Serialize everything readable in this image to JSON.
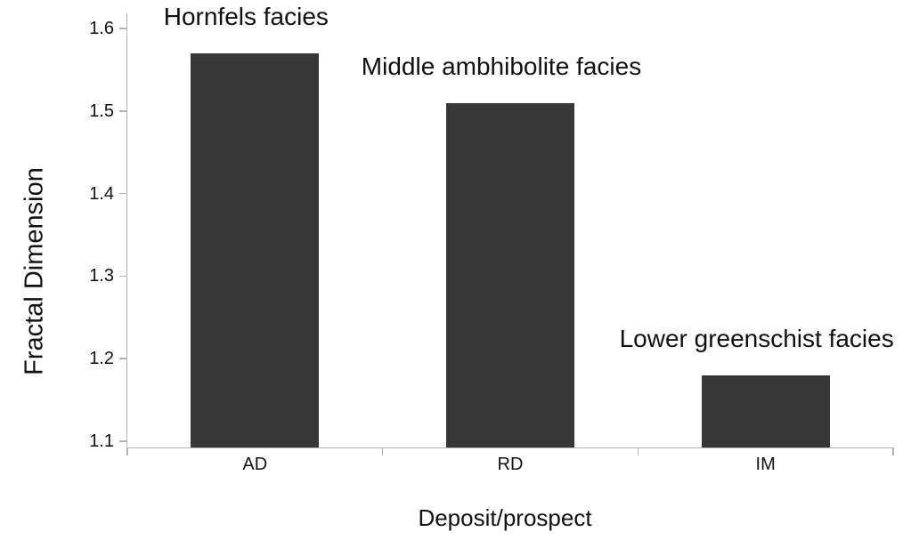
{
  "chart_data": {
    "type": "bar",
    "title": "",
    "xlabel": "Deposit/prospect",
    "ylabel": "Fractal Dimension",
    "categories": [
      "AD",
      "RD",
      "IM"
    ],
    "values": [
      1.57,
      1.51,
      1.18
    ],
    "bar_annotations": [
      "Hornfels facies",
      "Middle ambhibolite facies",
      "Lower greenschist facies"
    ],
    "y_ticks": [
      1.1,
      1.2,
      1.3,
      1.4,
      1.5,
      1.6
    ],
    "ylim": [
      1.1,
      1.6
    ],
    "grid": false,
    "legend": false,
    "layout_hint": "single series vertical bars, annotations above each bar, outward ticks, category boundary ticks on x-axis",
    "colors": {
      "bar": "#363636",
      "axis": "#b3b3b3",
      "text": "#111111",
      "background": "#ffffff"
    }
  }
}
